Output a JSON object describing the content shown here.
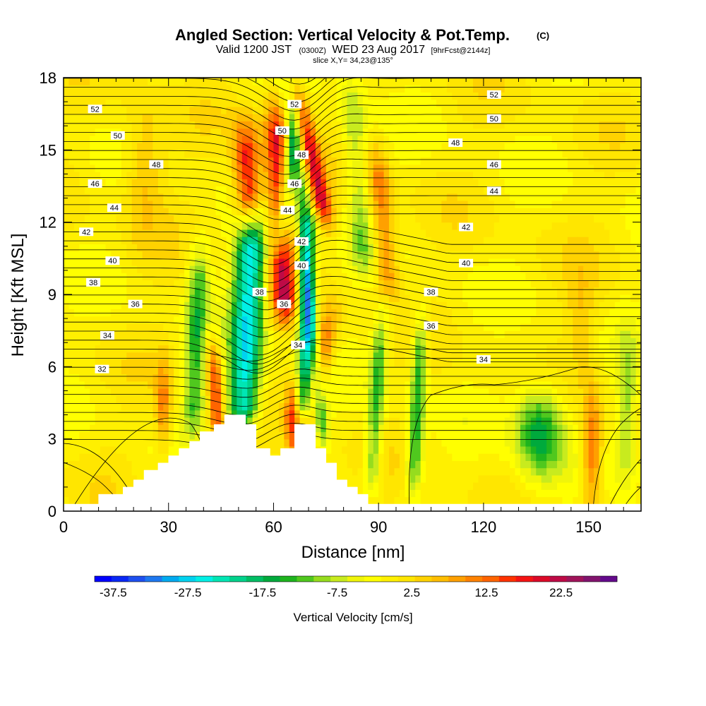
{
  "title": {
    "main": "Angled Section: Vertical Velocity & Pot.Temp.",
    "unit": "(C)",
    "valid_prefix": "Valid 1200 JST",
    "valid_z": "(0300Z)",
    "valid_date": "WED 23 Aug 2017",
    "forecast": "[9hrFcst@2144z]",
    "slice": "slice X,Y= 34,23@135°"
  },
  "chart_data": {
    "type": "heatmap",
    "title": "Angled Section: Vertical Velocity & Pot.Temp. (C)",
    "xlabel": "Distance [nm]",
    "ylabel": "Height [Kft MSL]",
    "xlim": [
      0,
      165
    ],
    "ylim": [
      0,
      18
    ],
    "x_ticks": [
      0,
      30,
      60,
      90,
      120,
      150
    ],
    "y_ticks": [
      0,
      3,
      6,
      9,
      12,
      15,
      18
    ],
    "colorbar": {
      "title": "Vertical Velocity [cm/s]",
      "tick_labels": [
        "-37.5",
        "-27.5",
        "-17.5",
        "-7.5",
        "2.5",
        "12.5",
        "22.5"
      ],
      "range": [
        -40,
        30
      ],
      "step": 2.5,
      "colors": [
        "#0000ff",
        "#0a28f5",
        "#1e50f0",
        "#1e78f0",
        "#00aaf0",
        "#00d2f0",
        "#00f0e6",
        "#00e6b4",
        "#00d28c",
        "#00be64",
        "#00aa3c",
        "#1eb41e",
        "#50c81e",
        "#96dc1e",
        "#c8eb1e",
        "#f0f50a",
        "#ffff00",
        "#fff000",
        "#ffe600",
        "#ffd200",
        "#ffbe00",
        "#ffa000",
        "#ff8200",
        "#ff6400",
        "#ff3200",
        "#f51414",
        "#dc0a28",
        "#be0a46",
        "#a0145a",
        "#82146e",
        "#640a8c"
      ]
    },
    "theta_contours": [
      {
        "label": "32",
        "value": 32,
        "label_positions": [
          [
            11,
            5.9
          ]
        ]
      },
      {
        "label": "34",
        "value": 34,
        "label_positions": [
          [
            12.5,
            7.3
          ],
          [
            67,
            6.9
          ],
          [
            120,
            6.3
          ]
        ]
      },
      {
        "label": "36",
        "value": 36,
        "label_positions": [
          [
            20.5,
            8.6
          ],
          [
            63,
            8.6
          ],
          [
            105,
            7.7
          ]
        ]
      },
      {
        "label": "38",
        "value": 38,
        "label_positions": [
          [
            8.5,
            9.5
          ],
          [
            56,
            9.1
          ],
          [
            105,
            9.1
          ]
        ]
      },
      {
        "label": "40",
        "value": 40,
        "label_positions": [
          [
            14,
            10.4
          ],
          [
            68,
            10.2
          ],
          [
            115,
            10.3
          ]
        ]
      },
      {
        "label": "42",
        "value": 42,
        "label_positions": [
          [
            6.5,
            11.6
          ],
          [
            68,
            11.2
          ],
          [
            115,
            11.8
          ]
        ]
      },
      {
        "label": "44",
        "value": 44,
        "label_positions": [
          [
            14.5,
            12.6
          ],
          [
            64,
            12.5
          ],
          [
            123,
            13.3
          ]
        ]
      },
      {
        "label": "46",
        "value": 46,
        "label_positions": [
          [
            9,
            13.6
          ],
          [
            66,
            13.6
          ],
          [
            123,
            14.4
          ]
        ]
      },
      {
        "label": "48",
        "value": 48,
        "label_positions": [
          [
            26.5,
            14.4
          ],
          [
            68,
            14.8
          ],
          [
            112,
            15.3
          ]
        ]
      },
      {
        "label": "50",
        "value": 50,
        "label_positions": [
          [
            15.5,
            15.6
          ],
          [
            62.5,
            15.8
          ],
          [
            123,
            16.3
          ]
        ]
      },
      {
        "label": "52",
        "value": 52,
        "label_positions": [
          [
            9,
            16.7
          ],
          [
            66,
            16.9
          ],
          [
            123,
            17.3
          ]
        ]
      }
    ],
    "terrain_profile": [
      [
        10,
        0.3
      ],
      [
        10,
        0.7
      ],
      [
        17,
        0.7
      ],
      [
        17,
        1.0
      ],
      [
        20,
        1.0
      ],
      [
        20,
        1.3
      ],
      [
        23,
        1.3
      ],
      [
        23,
        1.7
      ],
      [
        27,
        1.7
      ],
      [
        27,
        2.0
      ],
      [
        30,
        2.0
      ],
      [
        30,
        2.3
      ],
      [
        33,
        2.3
      ],
      [
        33,
        2.6
      ],
      [
        36,
        2.6
      ],
      [
        36,
        2.9
      ],
      [
        39,
        2.9
      ],
      [
        39,
        3.3
      ],
      [
        43,
        3.3
      ],
      [
        43,
        3.6
      ],
      [
        46,
        3.6
      ],
      [
        46,
        4.0
      ],
      [
        52,
        4.0
      ],
      [
        52,
        3.6
      ],
      [
        55,
        3.6
      ],
      [
        55,
        2.6
      ],
      [
        59,
        2.6
      ],
      [
        59,
        2.3
      ],
      [
        62,
        2.3
      ],
      [
        62,
        2.6
      ],
      [
        66,
        2.6
      ],
      [
        66,
        3.6
      ],
      [
        72,
        3.6
      ],
      [
        72,
        2.6
      ],
      [
        75,
        2.6
      ],
      [
        75,
        2.0
      ],
      [
        78,
        2.0
      ],
      [
        78,
        1.3
      ],
      [
        81,
        1.3
      ],
      [
        81,
        1.0
      ],
      [
        84,
        1.0
      ],
      [
        84,
        0.7
      ],
      [
        87,
        0.7
      ],
      [
        87,
        0.3
      ]
    ]
  }
}
